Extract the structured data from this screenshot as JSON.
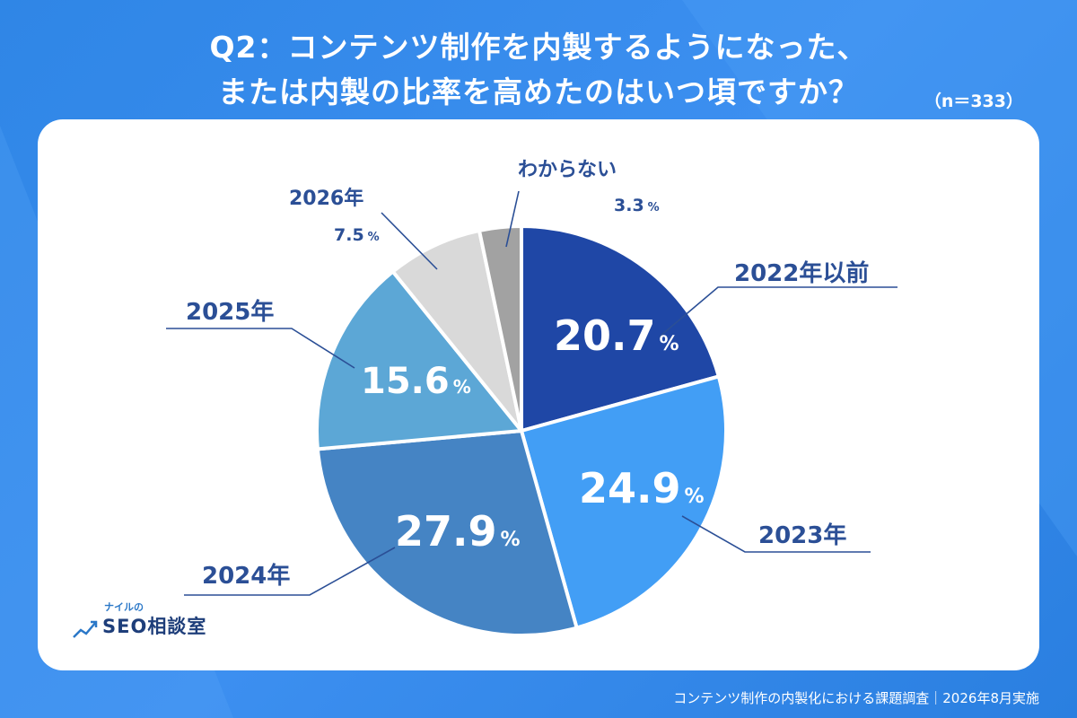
{
  "title": {
    "line1": "Q2：コンテンツ制作を内製するようになった、",
    "line2": "または内製の比率を高めたのはいつ頃ですか？"
  },
  "sample_size": "（n＝333）",
  "colors": {
    "2022年以前": "#1f47a6",
    "2023年": "#429ef5",
    "2024年": "#4584c4",
    "2025年": "#5ca7d6",
    "2026年": "#d9d9d9",
    "わからない": "#a2a2a2",
    "label_text": "#2b4f96",
    "card": "#ffffff"
  },
  "chart_data": {
    "type": "pie",
    "start": "12 o'clock, clockwise",
    "slices": [
      {
        "label": "2022年以前",
        "value": 20.7,
        "pct_text": "20.7",
        "unit": "%"
      },
      {
        "label": "2023年",
        "value": 24.9,
        "pct_text": "24.9",
        "unit": "%"
      },
      {
        "label": "2024年",
        "value": 27.9,
        "pct_text": "27.9",
        "unit": "%"
      },
      {
        "label": "2025年",
        "value": 15.6,
        "pct_text": "15.6",
        "unit": "%"
      },
      {
        "label": "2026年",
        "value": 7.5,
        "pct_text": "7.5",
        "unit": "%"
      },
      {
        "label": "わからない",
        "value": 3.3,
        "pct_text": "3.3",
        "unit": "%"
      }
    ]
  },
  "logo": {
    "small": "ナイルの",
    "main": "SEO相談室",
    "icon": "trend-chart-icon"
  },
  "footer": "コンテンツ制作の内製化における課題調査｜2026年8月実施"
}
